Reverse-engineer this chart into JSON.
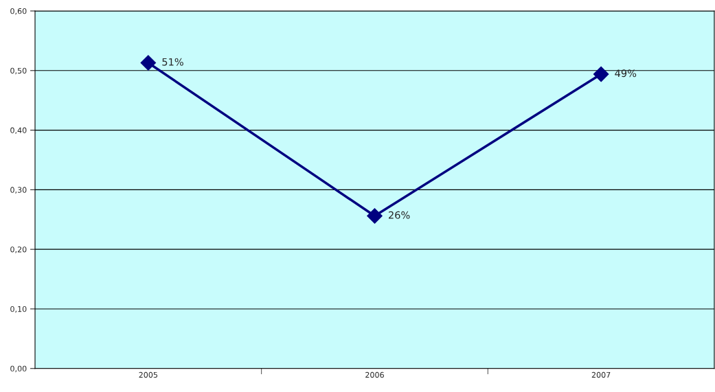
{
  "chart_data": {
    "type": "line",
    "categories": [
      "2005",
      "2006",
      "2007"
    ],
    "series": [
      {
        "color": "#000080",
        "values": [
          0.513,
          0.256,
          0.494
        ],
        "value_labels": [
          "51%",
          "26%",
          "49%"
        ]
      }
    ],
    "ylim": [
      0,
      0.6
    ],
    "yticks": [
      {
        "value": 0,
        "label": "0,00"
      },
      {
        "value": 0.1,
        "label": "0,10"
      },
      {
        "value": 0.2,
        "label": "0,20"
      },
      {
        "value": 0.3,
        "label": "0,30"
      },
      {
        "value": 0.4,
        "label": "0,40"
      },
      {
        "value": 0.5,
        "label": "0,50"
      },
      {
        "value": 0.6,
        "label": "0,60"
      }
    ],
    "grid": "y",
    "marker": "diamond",
    "line_style": "solid",
    "legend": false
  }
}
